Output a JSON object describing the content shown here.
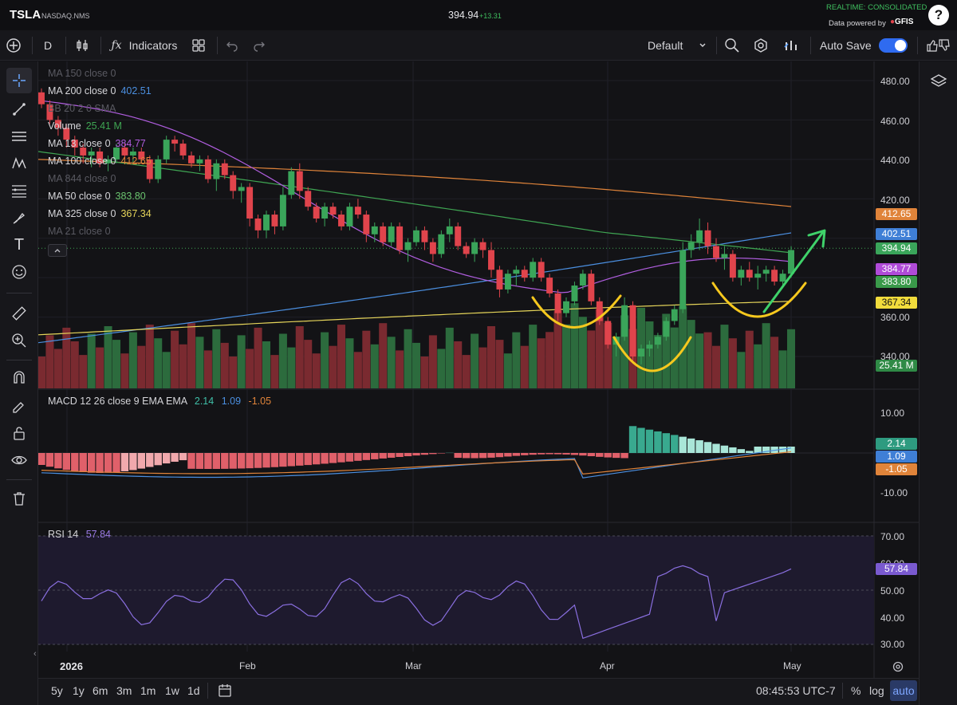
{
  "header": {
    "symbol": "TSLA",
    "exchange": "NASDAQ.NMS",
    "last_price": "394.94",
    "change": "+13.31",
    "realtime_label": "REALTIME: CONSOLIDATED",
    "data_powered_label": "Data powered by",
    "provider_logo": "GFIS"
  },
  "toolbar": {
    "interval": "D",
    "indicators_label": "Indicators",
    "layout_name": "Default",
    "autosave_label": "Auto Save",
    "autosave_on": true
  },
  "legend": {
    "ma150": {
      "label": "MA 150 close 0",
      "value": ""
    },
    "ma200": {
      "label": "MA 200 close 0",
      "value": "402.51"
    },
    "bb": {
      "label": "BB 20 2 0 SMA",
      "value": ""
    },
    "volume": {
      "label": "Volume",
      "value": "25.41 M"
    },
    "ma13": {
      "label": "MA 13 close 0",
      "value": "384.77"
    },
    "ma100": {
      "label": "MA 100 close 0",
      "value": "412.65"
    },
    "ma844": {
      "label": "MA 844 close 0",
      "value": ""
    },
    "ma50": {
      "label": "MA 50 close 0",
      "value": "383.80"
    },
    "ma325": {
      "label": "MA 325 close 0",
      "value": "367.34"
    },
    "ma21": {
      "label": "MA 21 close 0",
      "value": ""
    }
  },
  "price_axis": [
    "480.00",
    "460.00",
    "440.00",
    "420.00",
    "360.00",
    "340.00"
  ],
  "price_tags": {
    "ma100": "412.65",
    "ma200": "402.51",
    "last": "394.94",
    "ma13": "384.77",
    "ma50": "383.80",
    "ma325": "367.34",
    "volume": "25.41 M"
  },
  "macd": {
    "label": "MACD 12 26 close 9 EMA EMA",
    "hist": "2.14",
    "macd": "1.09",
    "signal": "-1.05",
    "axis": [
      "10.00",
      "-10.00"
    ]
  },
  "rsi": {
    "label": "RSI 14",
    "value": "57.84",
    "axis": [
      "70.00",
      "60.00",
      "50.00",
      "40.00",
      "30.00"
    ]
  },
  "time_axis": [
    "2026",
    "Feb",
    "Mar",
    "Apr",
    "May"
  ],
  "timeframes": [
    "5y",
    "1y",
    "6m",
    "3m",
    "1m",
    "1w",
    "1d"
  ],
  "bottom": {
    "clock": "08:45:53 UTC-7",
    "percent": "%",
    "log": "log",
    "auto": "auto"
  },
  "colors": {
    "up": "#3aa55a",
    "down": "#e0444c",
    "ma200": "#4b8fe0",
    "ma100": "#e0843a",
    "ma50": "#3fa653",
    "ma13": "#b15ee0",
    "ma325": "#e6d55a",
    "annotation_yellow": "#f6c81e",
    "annotation_green": "#3fd26a"
  },
  "chart_data": {
    "type": "candlestick",
    "ylim": [
      330,
      490
    ],
    "candles": [
      [
        474,
        476,
        466,
        468
      ],
      [
        468,
        470,
        458,
        460
      ],
      [
        460,
        462,
        452,
        456
      ],
      [
        456,
        458,
        446,
        450
      ],
      [
        450,
        452,
        442,
        446
      ],
      [
        446,
        448,
        438,
        442
      ],
      [
        442,
        446,
        436,
        444
      ],
      [
        444,
        446,
        436,
        438
      ],
      [
        438,
        442,
        434,
        440
      ],
      [
        440,
        448,
        438,
        446
      ],
      [
        446,
        448,
        440,
        442
      ],
      [
        442,
        446,
        438,
        444
      ],
      [
        444,
        446,
        438,
        440
      ],
      [
        440,
        442,
        428,
        430
      ],
      [
        430,
        442,
        428,
        440
      ],
      [
        440,
        452,
        438,
        450
      ],
      [
        450,
        452,
        444,
        448
      ],
      [
        448,
        450,
        440,
        442
      ],
      [
        442,
        444,
        436,
        438
      ],
      [
        438,
        442,
        434,
        440
      ],
      [
        440,
        442,
        428,
        430
      ],
      [
        430,
        440,
        424,
        438
      ],
      [
        438,
        440,
        430,
        432
      ],
      [
        432,
        434,
        420,
        424
      ],
      [
        424,
        428,
        418,
        426
      ],
      [
        426,
        428,
        406,
        410
      ],
      [
        410,
        412,
        400,
        404
      ],
      [
        404,
        414,
        400,
        412
      ],
      [
        412,
        414,
        402,
        406
      ],
      [
        406,
        426,
        404,
        422
      ],
      [
        422,
        436,
        420,
        434
      ],
      [
        434,
        438,
        420,
        424
      ],
      [
        424,
        426,
        414,
        416
      ],
      [
        416,
        418,
        408,
        410
      ],
      [
        410,
        418,
        406,
        416
      ],
      [
        416,
        418,
        410,
        412
      ],
      [
        412,
        414,
        404,
        406
      ],
      [
        406,
        418,
        404,
        416
      ],
      [
        416,
        420,
        410,
        412
      ],
      [
        412,
        414,
        398,
        402
      ],
      [
        402,
        408,
        398,
        406
      ],
      [
        406,
        408,
        396,
        398
      ],
      [
        398,
        408,
        396,
        406
      ],
      [
        406,
        408,
        392,
        394
      ],
      [
        394,
        400,
        388,
        398
      ],
      [
        398,
        406,
        396,
        404
      ],
      [
        404,
        406,
        394,
        398
      ],
      [
        398,
        400,
        388,
        392
      ],
      [
        392,
        404,
        390,
        402
      ],
      [
        402,
        410,
        398,
        406
      ],
      [
        406,
        408,
        394,
        396
      ],
      [
        396,
        398,
        390,
        392
      ],
      [
        392,
        400,
        388,
        398
      ],
      [
        398,
        400,
        390,
        394
      ],
      [
        394,
        398,
        380,
        384
      ],
      [
        384,
        386,
        370,
        374
      ],
      [
        374,
        384,
        372,
        382
      ],
      [
        382,
        386,
        376,
        384
      ],
      [
        384,
        386,
        378,
        380
      ],
      [
        380,
        390,
        378,
        388
      ],
      [
        388,
        390,
        378,
        380
      ],
      [
        380,
        382,
        370,
        372
      ],
      [
        372,
        374,
        358,
        362
      ],
      [
        362,
        370,
        360,
        368
      ],
      [
        368,
        378,
        366,
        376
      ],
      [
        376,
        384,
        374,
        382
      ],
      [
        382,
        384,
        366,
        368
      ],
      [
        368,
        370,
        356,
        358
      ],
      [
        358,
        360,
        344,
        346
      ],
      [
        346,
        352,
        340,
        350
      ],
      [
        350,
        370,
        348,
        366
      ],
      [
        366,
        368,
        338,
        340
      ],
      [
        340,
        346,
        336,
        344
      ],
      [
        344,
        348,
        340,
        346
      ],
      [
        346,
        352,
        344,
        350
      ],
      [
        350,
        360,
        348,
        358
      ],
      [
        358,
        366,
        356,
        364
      ],
      [
        364,
        398,
        362,
        394
      ],
      [
        394,
        402,
        390,
        398
      ],
      [
        398,
        410,
        394,
        404
      ],
      [
        404,
        408,
        392,
        396
      ],
      [
        396,
        400,
        388,
        390
      ],
      [
        390,
        396,
        384,
        392
      ],
      [
        392,
        394,
        378,
        380
      ],
      [
        380,
        386,
        376,
        384
      ],
      [
        384,
        388,
        378,
        380
      ],
      [
        380,
        386,
        374,
        382
      ],
      [
        382,
        386,
        378,
        384
      ],
      [
        384,
        386,
        376,
        378
      ],
      [
        378,
        384,
        376,
        382
      ],
      [
        382,
        396,
        380,
        394
      ]
    ]
  }
}
